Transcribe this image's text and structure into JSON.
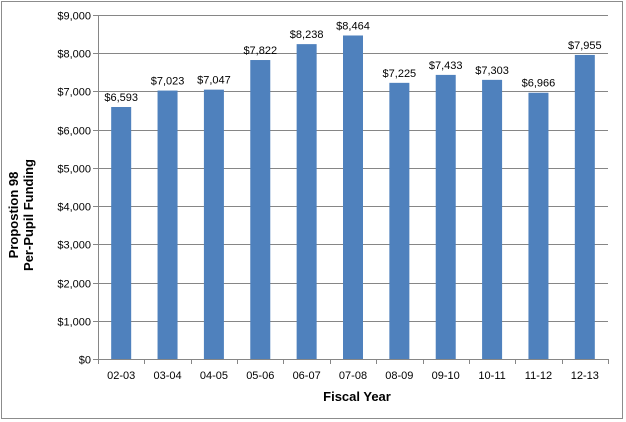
{
  "chart_data": {
    "type": "bar",
    "title": "",
    "xlabel": "Fiscal Year",
    "ylabel_lines": [
      "Propostion 98",
      "Per-Pupil Funding"
    ],
    "categories": [
      "02-03",
      "03-04",
      "04-05",
      "05-06",
      "06-07",
      "07-08",
      "08-09",
      "09-10",
      "10-11",
      "11-12",
      "12-13"
    ],
    "values": [
      6593,
      7023,
      7047,
      7822,
      8238,
      8464,
      7225,
      7433,
      7303,
      6966,
      7955
    ],
    "data_labels": [
      "$6,593",
      "$7,023",
      "$7,047",
      "$7,822",
      "$8,238",
      "$8,464",
      "$7,225",
      "$7,433",
      "$7,303",
      "$6,966",
      "$7,955"
    ],
    "ylim": [
      0,
      9000
    ],
    "yticks": [
      0,
      1000,
      2000,
      3000,
      4000,
      5000,
      6000,
      7000,
      8000,
      9000
    ],
    "ytick_labels": [
      "$0",
      "$1,000",
      "$2,000",
      "$3,000",
      "$4,000",
      "$5,000",
      "$6,000",
      "$7,000",
      "$8,000",
      "$9,000"
    ],
    "grid": true,
    "legend": "none",
    "bar_color": "#4f81bd",
    "grid_color": "#868686"
  }
}
